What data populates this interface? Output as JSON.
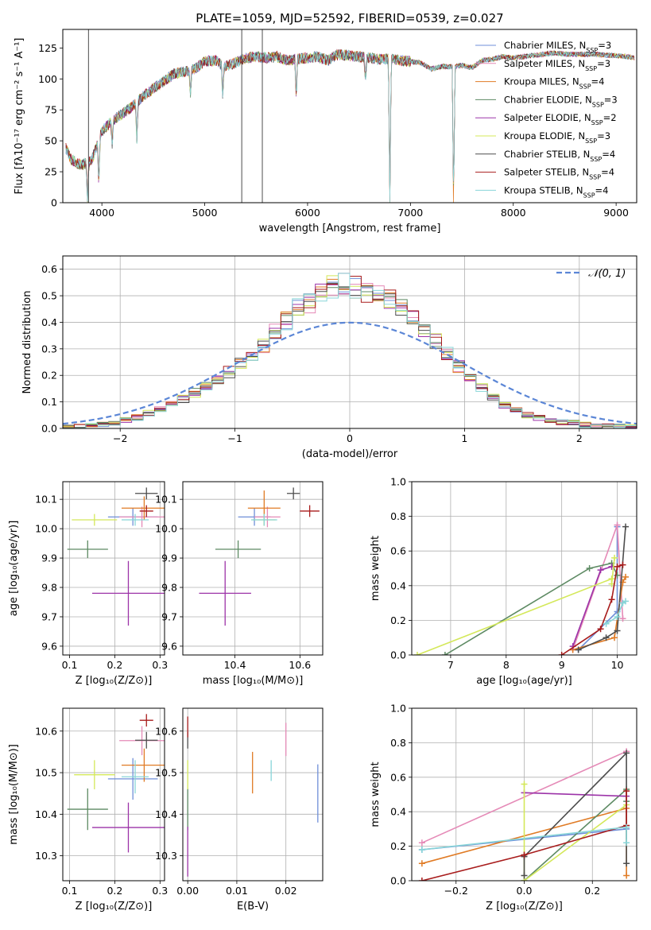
{
  "figure_title": "PLATE=1059, MJD=52592, FIBERID=0539, z=0.027",
  "colors": {
    "Chabrier MILES": "#6f8fd8",
    "Salpeter MILES": "#e58ab7",
    "Kroupa MILES": "#e07b25",
    "Chabrier ELODIE": "#5d8a63",
    "Salpeter ELODIE": "#9c33a8",
    "Kroupa ELODIE": "#d4e85a",
    "Chabrier STELIB": "#4d4d4d",
    "Salpeter STELIB": "#a81c1c",
    "Kroupa STELIB": "#88d5d8"
  },
  "chart_data": [
    {
      "type": "line",
      "title": "PLATE=1059, MJD=52592, FIBERID=0539, z=0.027",
      "xlabel": "wavelength [Angstrom, rest frame]",
      "ylabel": "Flux [fλ10⁻¹⁷ erg cm⁻² s⁻¹ A⁻¹]",
      "xlim": [
        3620,
        9200
      ],
      "ylim": [
        0,
        140
      ],
      "xticks": [
        4000,
        5000,
        6000,
        7000,
        8000,
        9000
      ],
      "yticks": [
        0,
        25,
        50,
        75,
        100,
        125
      ],
      "legend": "right",
      "series": [
        {
          "name": "Chabrier MILES, N_SSP=3",
          "label": "Chabrier MILES, N",
          "sub": "SSP",
          "suffix": "=3"
        },
        {
          "name": "Salpeter MILES, N_SSP=3",
          "label": "Salpeter MILES, N",
          "sub": "SSP",
          "suffix": "=3"
        },
        {
          "name": "Kroupa MILES, N_SSP=4",
          "label": "Kroupa MILES, N",
          "sub": "SSP",
          "suffix": "=4"
        },
        {
          "name": "Chabrier ELODIE, N_SSP=3",
          "label": "Chabrier ELODIE, N",
          "sub": "SSP",
          "suffix": "=3"
        },
        {
          "name": "Salpeter ELODIE, N_SSP=2",
          "label": "Salpeter ELODIE, N",
          "sub": "SSP",
          "suffix": "=2"
        },
        {
          "name": "Kroupa ELODIE, N_SSP=3",
          "label": "Kroupa ELODIE, N",
          "sub": "SSP",
          "suffix": "=3"
        },
        {
          "name": "Chabrier STELIB, N_SSP=4",
          "label": "Chabrier STELIB, N",
          "sub": "SSP",
          "suffix": "=4"
        },
        {
          "name": "Salpeter STELIB, N_SSP=4",
          "label": "Salpeter STELIB, N",
          "sub": "SSP",
          "suffix": "=4"
        },
        {
          "name": "Kroupa STELIB, N_SSP=4",
          "label": "Kroupa STELIB, N",
          "sub": "SSP",
          "suffix": "=4"
        }
      ],
      "continuum": {
        "x": [
          3650,
          3700,
          3800,
          3900,
          4000,
          4100,
          4200,
          4300,
          4400,
          4500,
          4600,
          4700,
          4800,
          4900,
          5000,
          5100,
          5200,
          5300,
          5400,
          5500,
          5600,
          5700,
          5800,
          5900,
          6000,
          6100,
          6200,
          6300,
          6400,
          6500,
          6600,
          6700,
          6800,
          6900,
          7000,
          7100,
          7200,
          7300,
          7400,
          7500,
          7600,
          7700,
          7800,
          7900,
          8000,
          8100,
          8200,
          8300,
          8400,
          8500,
          8600,
          8700,
          8800,
          8900,
          9000,
          9100,
          9180
        ],
        "y": [
          44,
          35,
          30,
          34,
          58,
          66,
          72,
          78,
          86,
          92,
          98,
          104,
          106,
          108,
          114,
          115,
          110,
          113,
          117,
          118,
          117,
          118,
          115,
          116,
          117,
          118,
          115,
          120,
          119,
          118,
          117,
          116,
          116,
          115,
          114,
          113,
          108,
          110,
          110,
          111,
          109,
          115,
          116,
          118,
          117,
          118,
          119,
          120,
          121,
          120,
          120,
          120,
          120,
          119,
          119,
          118,
          117
        ]
      },
      "dips": [
        {
          "x": 3860,
          "y": 4
        },
        {
          "x": 3970,
          "y": 15
        },
        {
          "x": 4100,
          "y": 48
        },
        {
          "x": 4340,
          "y": 52
        },
        {
          "x": 4861,
          "y": 88
        },
        {
          "x": 5175,
          "y": 86
        },
        {
          "x": 5890,
          "y": 85
        },
        {
          "x": 6563,
          "y": 98
        },
        {
          "x": 6800,
          "y": 0
        },
        {
          "x": 7420,
          "y": 0
        }
      ],
      "spikes": [
        {
          "x": 3870,
          "y": 140,
          "series": "Chabrier STELIB, N_SSP=4"
        },
        {
          "x": 5360,
          "y": 140,
          "series": "Chabrier STELIB, N_SSP=4"
        },
        {
          "x": 5560,
          "y": 140,
          "series": "Chabrier STELIB, N_SSP=4"
        }
      ]
    },
    {
      "type": "line",
      "xlabel": "(data-model)/error",
      "ylabel": "Normed distribution",
      "xlim": [
        -2.5,
        2.5
      ],
      "ylim": [
        0,
        0.65
      ],
      "xticks": [
        -2,
        -1,
        0,
        1,
        2
      ],
      "yticks": [
        0.0,
        0.1,
        0.2,
        0.3,
        0.4,
        0.5,
        0.6
      ],
      "grid": true,
      "legend": "top-right",
      "reference": {
        "name": "N(0,1)",
        "label": "𝒩(0, 1)",
        "mean": 0,
        "sigma": 1,
        "style": "dashed",
        "color": "#5b86d6"
      },
      "histogram_bins": [
        -2.5,
        2.5,
        0.1
      ],
      "histogram_envelope": {
        "x": [
          -2.45,
          -2.25,
          -2.05,
          -1.85,
          -1.65,
          -1.45,
          -1.25,
          -1.05,
          -0.85,
          -0.65,
          -0.45,
          -0.25,
          -0.05,
          0.15,
          0.35,
          0.55,
          0.75,
          0.95,
          1.15,
          1.35,
          1.55,
          1.75,
          1.95,
          2.15,
          2.45
        ],
        "y": [
          0.005,
          0.01,
          0.02,
          0.04,
          0.07,
          0.11,
          0.16,
          0.21,
          0.27,
          0.36,
          0.45,
          0.5,
          0.55,
          0.52,
          0.48,
          0.42,
          0.33,
          0.23,
          0.15,
          0.09,
          0.05,
          0.03,
          0.02,
          0.01,
          0.005
        ]
      }
    },
    {
      "type": "scatter",
      "xlabel": "Z [log₁₀(Z/Z⊙)]",
      "ylabel": "age  [log₁₀(age/yr)]",
      "xlim": [
        0.085,
        0.31
      ],
      "ylim": [
        9.57,
        10.16
      ],
      "xticks": [
        0.1,
        0.2,
        0.3
      ],
      "yticks": [
        9.6,
        9.7,
        9.8,
        9.9,
        10.0,
        10.1
      ],
      "grid": true,
      "points": [
        {
          "series": "Chabrier MILES",
          "x": 0.24,
          "y": 10.04,
          "xerr": 0.055,
          "yerr": 0.03
        },
        {
          "series": "Salpeter MILES",
          "x": 0.26,
          "y": 10.04,
          "xerr": 0.05,
          "yerr": 0.035
        },
        {
          "series": "Kroupa MILES",
          "x": 0.265,
          "y": 10.07,
          "xerr": 0.05,
          "yerr": 0.04
        },
        {
          "series": "Chabrier ELODIE",
          "x": 0.14,
          "y": 9.93,
          "xerr": 0.045,
          "yerr": 0.03
        },
        {
          "series": "Salpeter ELODIE",
          "x": 0.23,
          "y": 9.78,
          "xerr": 0.08,
          "yerr": 0.11
        },
        {
          "series": "Kroupa ELODIE",
          "x": 0.155,
          "y": 10.03,
          "xerr": 0.05,
          "yerr": 0.02
        },
        {
          "series": "Chabrier STELIB",
          "x": 0.27,
          "y": 10.12,
          "xerr": 0.025,
          "yerr": 0.02
        },
        {
          "series": "Salpeter STELIB",
          "x": 0.27,
          "y": 10.06,
          "xerr": 0.015,
          "yerr": 0.02
        },
        {
          "series": "Kroupa STELIB",
          "x": 0.245,
          "y": 10.03,
          "xerr": 0.03,
          "yerr": 0.02
        }
      ]
    },
    {
      "type": "scatter",
      "xlabel": "mass [log₁₀(M/M⊙)]",
      "xlim": [
        10.24,
        10.67
      ],
      "ylim": [
        9.57,
        10.16
      ],
      "xticks": [
        10.4,
        10.6
      ],
      "yticks": [
        9.6,
        9.7,
        9.8,
        9.9,
        10.0,
        10.1
      ],
      "grid": true,
      "points": [
        {
          "series": "Chabrier MILES",
          "x": 10.46,
          "y": 10.04,
          "xerr": 0.05,
          "yerr": 0.03
        },
        {
          "series": "Salpeter MILES",
          "x": 10.5,
          "y": 10.04,
          "xerr": 0.04,
          "yerr": 0.035
        },
        {
          "series": "Kroupa MILES",
          "x": 10.49,
          "y": 10.07,
          "xerr": 0.05,
          "yerr": 0.06
        },
        {
          "series": "Chabrier ELODIE",
          "x": 10.41,
          "y": 9.93,
          "xerr": 0.07,
          "yerr": 0.03
        },
        {
          "series": "Salpeter ELODIE",
          "x": 10.37,
          "y": 9.78,
          "xerr": 0.08,
          "yerr": 0.11
        },
        {
          "series": "Kroupa ELODIE",
          "x": 10.49,
          "y": 10.03,
          "xerr": 0.035,
          "yerr": 0.02
        },
        {
          "series": "Chabrier STELIB",
          "x": 10.58,
          "y": 10.12,
          "xerr": 0.02,
          "yerr": 0.02
        },
        {
          "series": "Salpeter STELIB",
          "x": 10.63,
          "y": 10.06,
          "xerr": 0.03,
          "yerr": 0.02
        },
        {
          "series": "Kroupa STELIB",
          "x": 10.49,
          "y": 10.03,
          "xerr": 0.04,
          "yerr": 0.02
        }
      ]
    },
    {
      "type": "line",
      "xlabel": "age  [log₁₀(age/yr)]",
      "ylabel": "mass weight",
      "xlim": [
        6.3,
        10.35
      ],
      "ylim": [
        0,
        1
      ],
      "xticks": [
        7,
        8,
        9,
        10
      ],
      "yticks": [
        0.0,
        0.2,
        0.4,
        0.6,
        0.8,
        1.0
      ],
      "grid": true,
      "series": [
        {
          "series": "Chabrier MILES",
          "x": [
            9.3,
            10.0,
            10.0
          ],
          "y": [
            0.03,
            0.25,
            0.74
          ]
        },
        {
          "series": "Salpeter MILES",
          "x": [
            9.2,
            10.0,
            10.1
          ],
          "y": [
            0.03,
            0.75,
            0.21
          ]
        },
        {
          "series": "Kroupa MILES",
          "x": [
            9.2,
            9.95,
            10.1,
            10.15
          ],
          "y": [
            0.03,
            0.1,
            0.42,
            0.45
          ]
        },
        {
          "series": "Chabrier ELODIE",
          "x": [
            6.9,
            9.5,
            9.9,
            10.0
          ],
          "y": [
            0.0,
            0.5,
            0.53,
            0.46
          ]
        },
        {
          "series": "Salpeter ELODIE",
          "x": [
            9.2,
            9.7,
            9.9
          ],
          "y": [
            0.05,
            0.49,
            0.51
          ]
        },
        {
          "series": "Kroupa ELODIE",
          "x": [
            6.4,
            9.9,
            9.9,
            9.95
          ],
          "y": [
            0.0,
            0.44,
            0.41,
            0.56
          ]
        },
        {
          "series": "Chabrier STELIB",
          "x": [
            9.3,
            9.8,
            10.0,
            10.15
          ],
          "y": [
            0.03,
            0.1,
            0.14,
            0.74
          ]
        },
        {
          "series": "Salpeter STELIB",
          "x": [
            9.0,
            9.7,
            9.9,
            10.0,
            10.1
          ],
          "y": [
            0.0,
            0.15,
            0.32,
            0.51,
            0.52
          ]
        },
        {
          "series": "Kroupa STELIB",
          "x": [
            9.8,
            10.0,
            10.1,
            10.15
          ],
          "y": [
            0.18,
            0.22,
            0.3,
            0.31
          ]
        }
      ]
    },
    {
      "type": "scatter",
      "xlabel": "Z [log₁₀(Z/Z⊙)]",
      "ylabel": "mass [log₁₀(M/M⊙)]",
      "xlim": [
        0.085,
        0.31
      ],
      "ylim": [
        10.24,
        10.655
      ],
      "xticks": [
        0.1,
        0.2,
        0.3
      ],
      "yticks": [
        10.3,
        10.4,
        10.5,
        10.6
      ],
      "grid": true,
      "points": [
        {
          "series": "Chabrier MILES",
          "x": 0.24,
          "y": 10.485,
          "xerr": 0.055,
          "yerr": 0.05
        },
        {
          "series": "Salpeter MILES",
          "x": 0.26,
          "y": 10.577,
          "xerr": 0.05,
          "yerr": 0.035
        },
        {
          "series": "Kroupa MILES",
          "x": 0.265,
          "y": 10.518,
          "xerr": 0.05,
          "yerr": 0.04
        },
        {
          "series": "Chabrier ELODIE",
          "x": 0.14,
          "y": 10.412,
          "xerr": 0.045,
          "yerr": 0.05
        },
        {
          "series": "Salpeter ELODIE",
          "x": 0.23,
          "y": 10.368,
          "xerr": 0.08,
          "yerr": 0.06
        },
        {
          "series": "Kroupa ELODIE",
          "x": 0.155,
          "y": 10.495,
          "xerr": 0.045,
          "yerr": 0.035
        },
        {
          "series": "Chabrier STELIB",
          "x": 0.27,
          "y": 10.578,
          "xerr": 0.025,
          "yerr": 0.02
        },
        {
          "series": "Salpeter STELIB",
          "x": 0.27,
          "y": 10.626,
          "xerr": 0.015,
          "yerr": 0.015
        },
        {
          "series": "Kroupa STELIB",
          "x": 0.245,
          "y": 10.49,
          "xerr": 0.03,
          "yerr": 0.04
        }
      ]
    },
    {
      "type": "scatter",
      "xlabel": "E(B-V)",
      "xlim": [
        -0.001,
        0.0275
      ],
      "ylim": [
        10.24,
        10.655
      ],
      "xticks": [
        0.0,
        0.01,
        0.02
      ],
      "yticks": [
        10.3,
        10.4,
        10.5,
        10.6
      ],
      "grid": true,
      "points": [
        {
          "series": "Chabrier MILES",
          "x": 0.0265,
          "y": 10.45,
          "yerr": 0.07
        },
        {
          "series": "Salpeter MILES",
          "x": 0.02,
          "y": 10.58,
          "yerr": 0.04
        },
        {
          "series": "Kroupa MILES",
          "x": 0.0132,
          "y": 10.5,
          "yerr": 0.05
        },
        {
          "series": "Chabrier ELODIE",
          "x": 0.0,
          "y": 10.412,
          "yerr": 0.05
        },
        {
          "series": "Salpeter ELODIE",
          "x": 0.0,
          "y": 10.31,
          "yerr": 0.06
        },
        {
          "series": "Kroupa ELODIE",
          "x": 0.0,
          "y": 10.495,
          "yerr": 0.035
        },
        {
          "series": "Chabrier STELIB",
          "x": 0.0,
          "y": 10.578,
          "yerr": 0.02
        },
        {
          "series": "Salpeter STELIB",
          "x": 0.0,
          "y": 10.61,
          "yerr": 0.025
        },
        {
          "series": "Kroupa STELIB",
          "x": 0.017,
          "y": 10.505,
          "yerr": 0.025
        }
      ]
    },
    {
      "type": "line",
      "xlabel": "Z [log₁₀(Z/Z⊙)]",
      "ylabel": "mass weight",
      "xlim": [
        -0.33,
        0.33
      ],
      "ylim": [
        0,
        1
      ],
      "xticks": [
        -0.2,
        0.0,
        0.2
      ],
      "xticklabels": [
        "−0.2",
        "0.0",
        "0.2"
      ],
      "yticks": [
        0.0,
        0.2,
        0.4,
        0.6,
        0.8,
        1.0
      ],
      "grid": true,
      "series": [
        {
          "series": "Chabrier MILES",
          "x": [
            -0.3,
            0.3
          ],
          "y": [
            0.18,
            0.3
          ]
        },
        {
          "series": "Salpeter MILES",
          "x": [
            -0.3,
            0.3
          ],
          "y": [
            0.22,
            0.75
          ]
        },
        {
          "series": "Kroupa MILES",
          "x": [
            -0.3,
            0.3,
            0.3
          ],
          "y": [
            0.1,
            0.42,
            0.03
          ]
        },
        {
          "series": "Chabrier ELODIE",
          "x": [
            0.0,
            0.3,
            0.3
          ],
          "y": [
            0.0,
            0.53,
            0.46
          ]
        },
        {
          "series": "Salpeter ELODIE",
          "x": [
            0.0,
            0.3
          ],
          "y": [
            0.51,
            0.49
          ]
        },
        {
          "series": "Kroupa ELODIE",
          "x": [
            0.0,
            0.0,
            0.3
          ],
          "y": [
            0.56,
            0.0,
            0.44
          ]
        },
        {
          "series": "Chabrier STELIB",
          "x": [
            0.0,
            0.0,
            0.3,
            0.3
          ],
          "y": [
            0.03,
            0.14,
            0.74,
            0.1
          ]
        },
        {
          "series": "Salpeter STELIB",
          "x": [
            -0.3,
            0.0,
            0.3,
            0.3
          ],
          "y": [
            0.0,
            0.15,
            0.32,
            0.52
          ]
        },
        {
          "series": "Kroupa STELIB",
          "x": [
            -0.3,
            0.3,
            0.3
          ],
          "y": [
            0.18,
            0.31,
            0.22
          ]
        }
      ]
    }
  ]
}
